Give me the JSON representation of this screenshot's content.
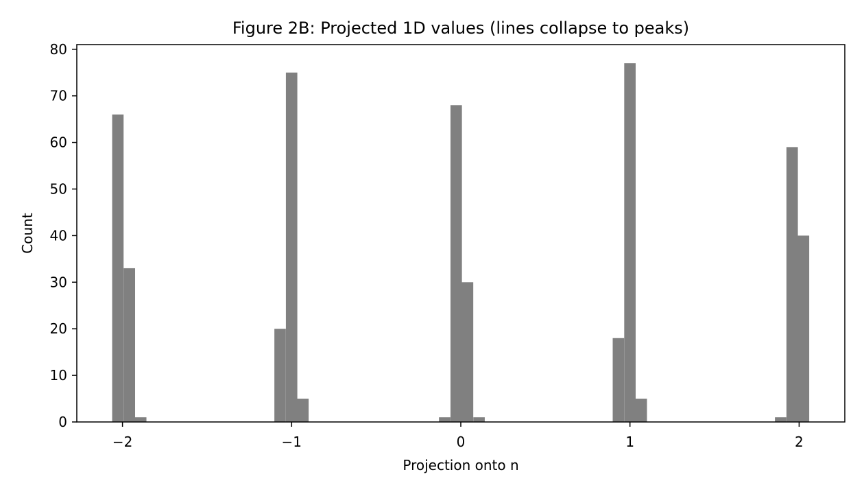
{
  "chart_data": {
    "type": "bar",
    "title": "Figure 2B: Projected 1D values (lines collapse to peaks)",
    "xlabel": "Projection onto n",
    "ylabel": "Count",
    "xlim": [
      -2.27,
      2.27
    ],
    "ylim": [
      0,
      81
    ],
    "xticks": [
      -2,
      -1,
      0,
      1,
      2
    ],
    "xtick_labels": [
      "−2",
      "−1",
      "0",
      "1",
      "2"
    ],
    "yticks": [
      0,
      10,
      20,
      30,
      40,
      50,
      60,
      70,
      80
    ],
    "ytick_labels": [
      "0",
      "10",
      "20",
      "30",
      "40",
      "50",
      "60",
      "70",
      "80"
    ],
    "grid": false,
    "bar_color": "#808080",
    "bin_width": 0.0676,
    "bins": [
      {
        "x_start": -2.061,
        "count": 66
      },
      {
        "x_start": -1.993,
        "count": 33
      },
      {
        "x_start": -1.926,
        "count": 1
      },
      {
        "x_start": -1.102,
        "count": 20
      },
      {
        "x_start": -1.034,
        "count": 75
      },
      {
        "x_start": -0.967,
        "count": 5
      },
      {
        "x_start": -0.129,
        "count": 1
      },
      {
        "x_start": -0.061,
        "count": 68
      },
      {
        "x_start": 0.006,
        "count": 30
      },
      {
        "x_start": 0.074,
        "count": 1
      },
      {
        "x_start": 0.898,
        "count": 18
      },
      {
        "x_start": 0.966,
        "count": 77
      },
      {
        "x_start": 1.033,
        "count": 5
      },
      {
        "x_start": 1.857,
        "count": 1
      },
      {
        "x_start": 1.925,
        "count": 59
      },
      {
        "x_start": 1.992,
        "count": 40
      }
    ]
  }
}
